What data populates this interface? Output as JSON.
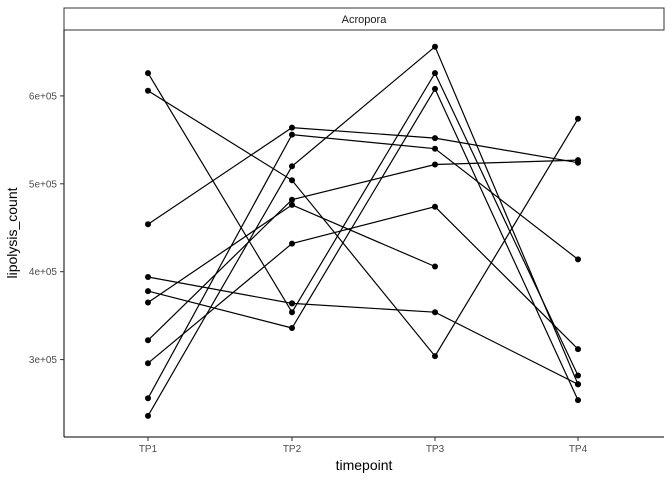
{
  "chart_data": {
    "type": "line",
    "facet_label": "Acropora",
    "xlabel": "timepoint",
    "ylabel": "lipolysis_count",
    "categories": [
      "TP1",
      "TP2",
      "TP3",
      "TP4"
    ],
    "ylim": [
      212000,
      675000
    ],
    "yticks": [
      300000,
      400000,
      500000,
      600000
    ],
    "ytick_labels": [
      "3e+05",
      "4e+05",
      "5e+05",
      "6e+05"
    ],
    "grid": false,
    "legend": "none",
    "colors": {
      "line": "#000000",
      "point": "#000000",
      "panel_border": "#000000",
      "strip_fill": "#ffffff"
    },
    "series": [
      {
        "values": [
          626000,
          354000,
          626000,
          282000
        ]
      },
      {
        "values": [
          606000,
          504000,
          304000,
          574000
        ]
      },
      {
        "values": [
          454000,
          564000,
          552000,
          524000
        ]
      },
      {
        "values": [
          394000,
          364000,
          354000,
          272000
        ]
      },
      {
        "values": [
          378000,
          336000,
          608000,
          254000
        ]
      },
      {
        "values": [
          365000,
          476000,
          406000,
          null
        ]
      },
      {
        "values": [
          322000,
          482000,
          522000,
          527000
        ]
      },
      {
        "values": [
          296000,
          432000,
          474000,
          312000
        ]
      },
      {
        "values": [
          256000,
          556000,
          540000,
          414000
        ]
      },
      {
        "values": [
          236000,
          520000,
          656000,
          272000
        ]
      },
      {
        "values": [
          null,
          364000,
          null,
          null
        ]
      }
    ]
  }
}
